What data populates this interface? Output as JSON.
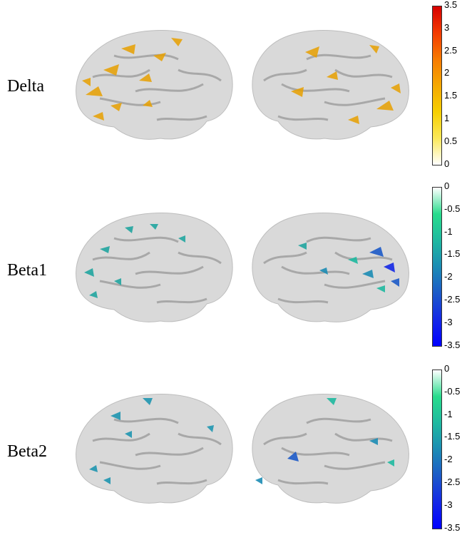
{
  "panels": [
    {
      "label": "Delta",
      "colorbar": {
        "ticks": [
          "3.5",
          "3",
          "2.5",
          "2",
          "1.5",
          "1",
          "0.5",
          "0"
        ],
        "gradient": [
          "#d70000",
          "#f23a00",
          "#f77a00",
          "#f5a800",
          "#f6cf00",
          "#fbe85a",
          "#ffffff"
        ]
      },
      "overlay_color": "#e8a000"
    },
    {
      "label": "Beta1",
      "colorbar": {
        "ticks": [
          "0",
          "-0.5",
          "-1",
          "-1.5",
          "-2",
          "-2.5",
          "-3",
          "-3.5"
        ],
        "gradient": [
          "#ffffff",
          "#28dc8c",
          "#1fb9a0",
          "#1c8cb4",
          "#1c5ac8",
          "#1428e6",
          "#0000ff"
        ]
      },
      "overlay_color": "#22a6a0"
    },
    {
      "label": "Beta2",
      "colorbar": {
        "ticks": [
          "0",
          "-0.5",
          "-1",
          "-1.5",
          "-2",
          "-2.5",
          "-3",
          "-3.5"
        ],
        "gradient": [
          "#ffffff",
          "#28dc8c",
          "#1fb9a0",
          "#1c8cb4",
          "#1c5ac8",
          "#1428e6",
          "#0000ff"
        ]
      },
      "overlay_color": "#1f96b0"
    }
  ]
}
